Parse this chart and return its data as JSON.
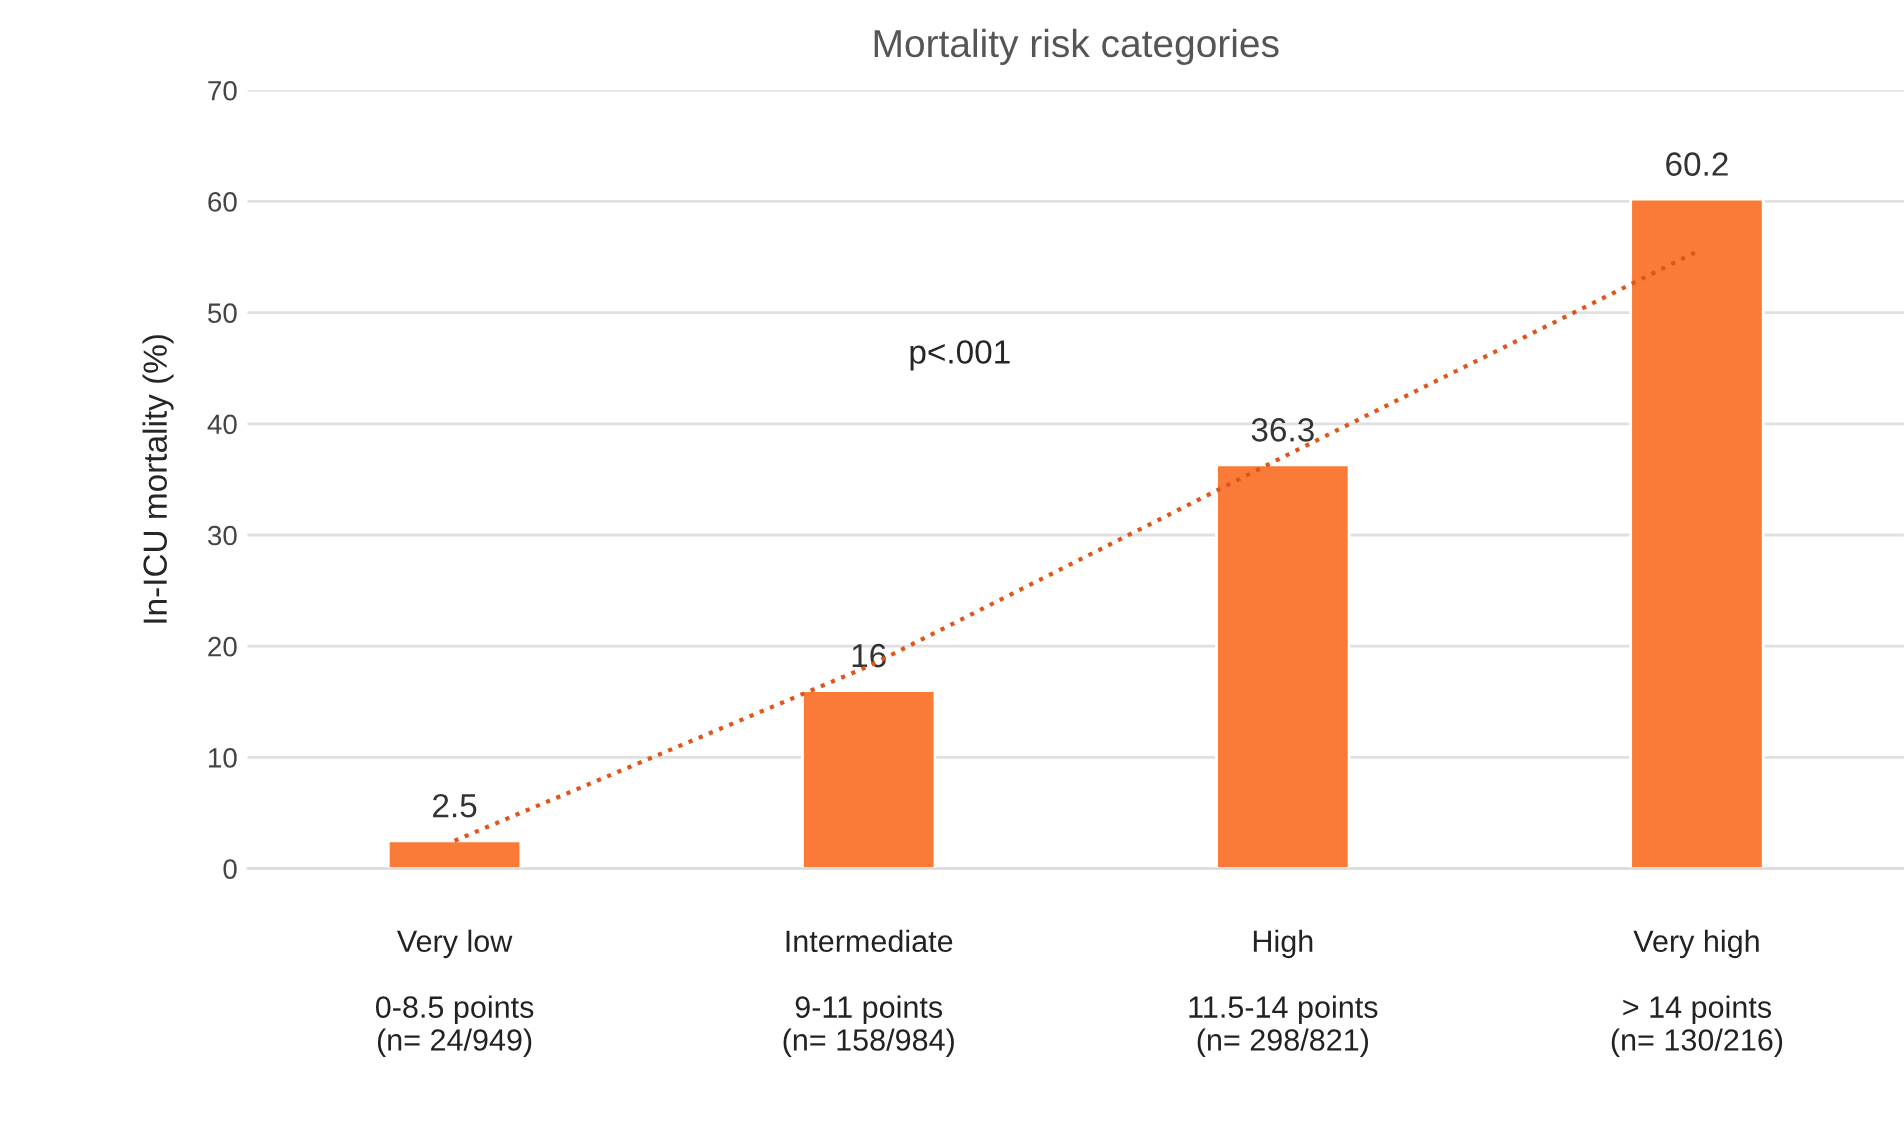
{
  "chart_data": {
    "type": "bar",
    "title": "Mortality risk categories",
    "ylabel": "In-ICU mortality (%)",
    "categories": [
      "Very low\n\n0-8.5 points\n(n= 24/949)",
      "Intermediate\n\n9-11 points\n(n= 158/984)",
      "High\n\n11.5-14 points\n(n= 298/821)",
      "Very high\n\n> 14 points\n(n= 130/216)"
    ],
    "series": [
      {
        "color": "#f97b37",
        "values": [
          2.5,
          16,
          36.3,
          60.2
        ],
        "value_labels": [
          "2.5",
          "16",
          "36.3",
          "60.2"
        ]
      },
      {
        "type": "line",
        "color": "#e0561a",
        "line_style": "dotted",
        "values": [
          2.5,
          18.2,
          37.0,
          55.5
        ]
      }
    ],
    "annotations": [
      "p<.001"
    ],
    "ylim": [
      0,
      70
    ],
    "yticks": [
      0,
      10,
      20,
      30,
      40,
      50,
      60,
      70
    ],
    "grid": "y",
    "legend": false
  }
}
